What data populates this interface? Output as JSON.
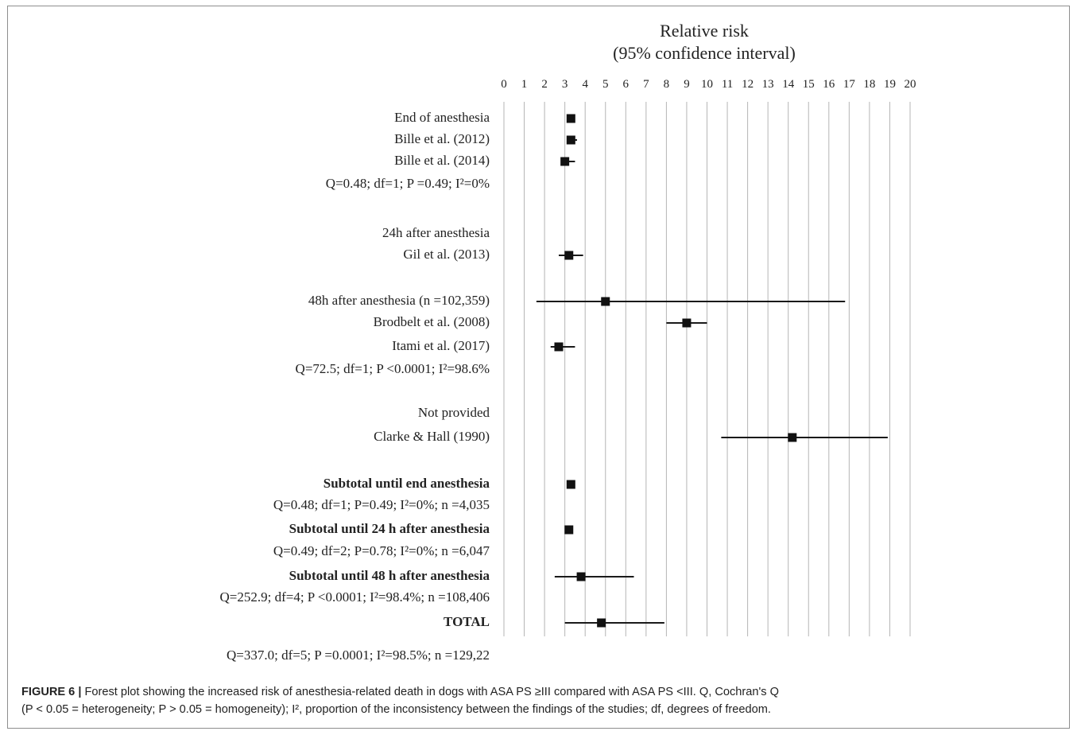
{
  "chart_data": {
    "type": "forest",
    "title_line1": "Relative risk",
    "title_line2": "(95% confidence interval)",
    "xlim": [
      0,
      20
    ],
    "ticks": [
      "0",
      "1",
      "2",
      "3",
      "4",
      "5",
      "6",
      "7",
      "8",
      "9",
      "10",
      "11",
      "12",
      "13",
      "14",
      "15",
      "16",
      "17",
      "18",
      "19",
      "20"
    ],
    "rows": [
      {
        "label": "End of anesthesia",
        "bold": false,
        "point": 3.3,
        "low": null,
        "high": null
      },
      {
        "label": "Bille et al. (2012)",
        "bold": false,
        "point": 3.3,
        "low": 3.1,
        "high": 3.6
      },
      {
        "label": "Bille et al. (2014)",
        "bold": false,
        "point": 3.0,
        "low": 2.8,
        "high": 3.5
      },
      {
        "label": "24h after anesthesia",
        "bold": false,
        "point": null,
        "low": null,
        "high": null
      },
      {
        "label": "Gil et al. (2013)",
        "bold": false,
        "point": 3.2,
        "low": 2.7,
        "high": 3.9
      },
      {
        "label": "48h after anesthesia (n =102,359)",
        "bold": false,
        "point": 5.0,
        "low": 1.6,
        "high": 16.8
      },
      {
        "label": "Brodbelt et al. (2008)",
        "bold": false,
        "point": 9.0,
        "low": 8.0,
        "high": 10.0
      },
      {
        "label": "Itami et al. (2017)",
        "bold": false,
        "point": 2.7,
        "low": 2.3,
        "high": 3.5
      },
      {
        "label": "Not provided",
        "bold": false,
        "point": null,
        "low": null,
        "high": null
      },
      {
        "label": "Clarke & Hall (1990)",
        "bold": false,
        "point": 14.2,
        "low": 10.7,
        "high": 18.9
      },
      {
        "label": "Subtotal until end anesthesia",
        "bold": true,
        "point": 3.3,
        "low": null,
        "high": null
      },
      {
        "label": "Subtotal until 24 h after anesthesia",
        "bold": true,
        "point": 3.2,
        "low": null,
        "high": null
      },
      {
        "label": "Subtotal until 48 h after anesthesia",
        "bold": true,
        "point": 3.8,
        "low": 2.5,
        "high": 6.4
      },
      {
        "label": "TOTAL",
        "bold": true,
        "point": 4.8,
        "low": 3.0,
        "high": 7.9
      }
    ],
    "stats": [
      "Q=0.48; df=1; P =0.49; I²=0%",
      "Q=72.5; df=1; P <0.0001; I²=98.6%",
      "Q=0.48; df=1; P=0.49; I²=0%; n =4,035",
      "Q=0.49; df=2; P=0.78; I²=0%; n =6,047",
      "Q=252.9; df=4; P <0.0001; I²=98.4%; n =108,406",
      "Q=337.0; df=5; P =0.0001; I²=98.5%; n =129,22"
    ]
  },
  "caption": {
    "label": "FIGURE 6 |",
    "line1": " Forest plot showing the increased risk of anesthesia-related death in dogs with ASA PS ≥III compared with ASA PS <III. Q, Cochran's Q",
    "line2": "(P < 0.05 = heterogeneity; P > 0.05 = homogeneity); I², proportion of the inconsistency between the findings of the studies; df, degrees of freedom."
  }
}
